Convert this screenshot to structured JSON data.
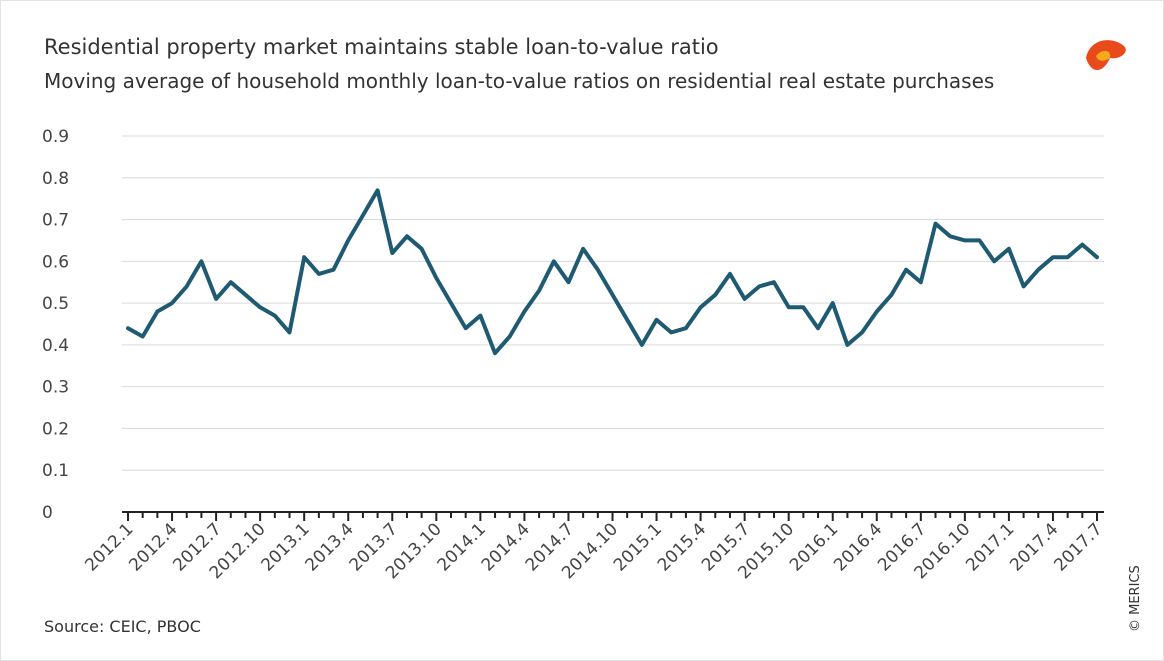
{
  "chart_data": {
    "type": "line",
    "title": "Residential property market maintains stable loan-to-value ratio",
    "subtitle": "Moving average of household monthly loan-to-value ratios on residential real estate purchases",
    "source": "Source: CEIC, PBOC",
    "credit": "© MERICS",
    "categories": [
      "2012.1",
      null,
      null,
      "2012.4",
      null,
      null,
      "2012.7",
      null,
      null,
      "2012.10",
      null,
      null,
      "2013.1",
      null,
      null,
      "2013.4",
      null,
      null,
      "2013.7",
      null,
      null,
      "2013.10",
      null,
      null,
      "2014.1",
      null,
      null,
      "2014.4",
      null,
      null,
      "2014.7",
      null,
      null,
      "2014.10",
      null,
      null,
      "2015.1",
      null,
      null,
      "2015.4",
      null,
      null,
      "2015.7",
      null,
      null,
      "2015.10",
      null,
      null,
      "2016.1",
      null,
      null,
      "2016.4",
      null,
      null,
      "2016.7",
      null,
      null,
      "2016.10",
      null,
      null,
      "2017.1",
      null,
      null,
      "2017.4",
      null,
      null,
      "2017.7"
    ],
    "values": [
      0.44,
      0.42,
      0.48,
      0.5,
      0.54,
      0.6,
      0.51,
      0.55,
      0.52,
      0.49,
      0.47,
      0.43,
      0.61,
      0.57,
      0.58,
      0.65,
      0.71,
      0.77,
      0.62,
      0.66,
      0.63,
      0.56,
      0.5,
      0.44,
      0.47,
      0.38,
      0.42,
      0.48,
      0.53,
      0.6,
      0.55,
      0.63,
      0.58,
      0.52,
      0.46,
      0.4,
      0.46,
      0.43,
      0.44,
      0.49,
      0.52,
      0.57,
      0.51,
      0.54,
      0.55,
      0.49,
      0.49,
      0.44,
      0.5,
      0.4,
      0.43,
      0.48,
      0.52,
      0.58,
      0.55,
      0.69,
      0.66,
      0.65,
      0.65,
      0.6,
      0.63,
      0.54,
      0.58,
      0.61,
      0.61,
      0.64,
      0.61
    ],
    "color": "#1f5a73",
    "ylim": [
      0,
      0.9
    ],
    "yticks": [
      0,
      0.1,
      0.2,
      0.3,
      0.4,
      0.5,
      0.6,
      0.7,
      0.8,
      0.9
    ],
    "grid": true
  }
}
